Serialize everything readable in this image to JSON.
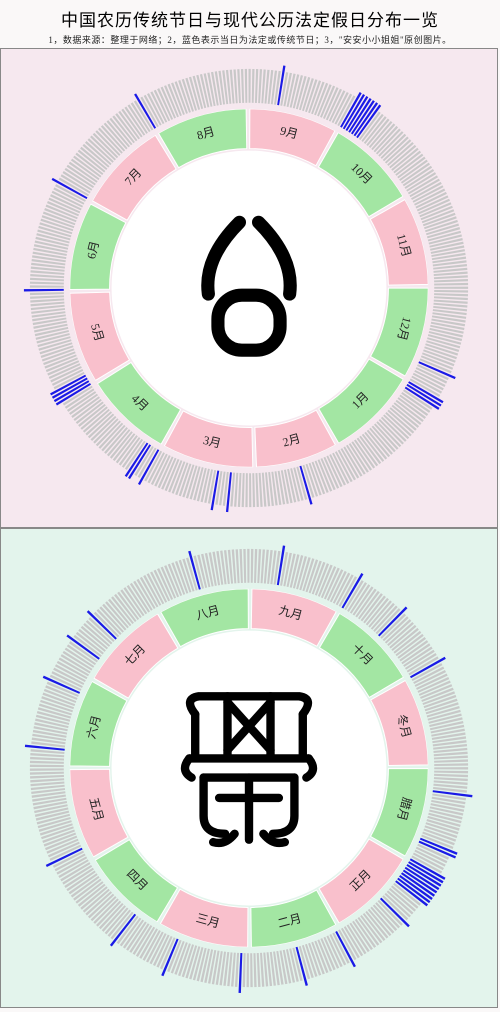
{
  "header": {
    "title": "中国农历传统节日与现代公历法定假日分布一览",
    "subtitle": "1，数据来源：整理于网络；2，蓝色表示当日为法定或传统节日；3，\"安安小小姐姐\"原创图片。"
  },
  "panels": [
    {
      "id": "gregorian",
      "background": "#f6e8ef",
      "months": [
        {
          "label": "1月",
          "days": 31,
          "color": "#a3e6a3"
        },
        {
          "label": "2月",
          "days": 28,
          "color": "#f9c0cc"
        },
        {
          "label": "3月",
          "days": 31,
          "color": "#f9c0cc"
        },
        {
          "label": "4月",
          "days": 30,
          "color": "#a3e6a3"
        },
        {
          "label": "5月",
          "days": 31,
          "color": "#f9c0cc"
        },
        {
          "label": "6月",
          "days": 30,
          "color": "#a3e6a3"
        },
        {
          "label": "7月",
          "days": 31,
          "color": "#f9c0cc"
        },
        {
          "label": "8月",
          "days": 31,
          "color": "#a3e6a3"
        },
        {
          "label": "9月",
          "days": 30,
          "color": "#f9c0cc"
        },
        {
          "label": "10月",
          "days": 31,
          "color": "#a3e6a3"
        },
        {
          "label": "11月",
          "days": 30,
          "color": "#f9c0cc"
        },
        {
          "label": "12月",
          "days": 31,
          "color": "#a3e6a3"
        }
      ],
      "holidays": [
        [
          1,
          1
        ],
        [
          1,
          2
        ],
        [
          1,
          3
        ],
        [
          2,
          14
        ],
        [
          3,
          8
        ],
        [
          3,
          12
        ],
        [
          4,
          1
        ],
        [
          4,
          4
        ],
        [
          4,
          5
        ],
        [
          5,
          1
        ],
        [
          5,
          2
        ],
        [
          5,
          3
        ],
        [
          5,
          4
        ],
        [
          6,
          1
        ],
        [
          7,
          1
        ],
        [
          8,
          1
        ],
        [
          9,
          10
        ],
        [
          10,
          1
        ],
        [
          10,
          2
        ],
        [
          10,
          3
        ],
        [
          10,
          4
        ],
        [
          10,
          5
        ],
        [
          10,
          6
        ],
        [
          10,
          7
        ],
        [
          12,
          25
        ]
      ],
      "glyph": "gong",
      "start_angle_deg": 120
    },
    {
      "id": "lunar",
      "background": "#e3f4ec",
      "months": [
        {
          "label": "正月",
          "days": 30,
          "color": "#f9c0cc"
        },
        {
          "label": "二月",
          "days": 29,
          "color": "#a3e6a3"
        },
        {
          "label": "三月",
          "days": 30,
          "color": "#f9c0cc"
        },
        {
          "label": "四月",
          "days": 29,
          "color": "#a3e6a3"
        },
        {
          "label": "五月",
          "days": 30,
          "color": "#f9c0cc"
        },
        {
          "label": "六月",
          "days": 29,
          "color": "#a3e6a3"
        },
        {
          "label": "七月",
          "days": 30,
          "color": "#f9c0cc"
        },
        {
          "label": "八月",
          "days": 30,
          "color": "#a3e6a3"
        },
        {
          "label": "九月",
          "days": 29,
          "color": "#f9c0cc"
        },
        {
          "label": "十月",
          "days": 30,
          "color": "#a3e6a3"
        },
        {
          "label": "冬月",
          "days": 29,
          "color": "#f9c0cc"
        },
        {
          "label": "腊月",
          "days": 30,
          "color": "#a3e6a3"
        }
      ],
      "holidays": [
        [
          1,
          1
        ],
        [
          1,
          2
        ],
        [
          1,
          3
        ],
        [
          1,
          4
        ],
        [
          1,
          5
        ],
        [
          1,
          6
        ],
        [
          1,
          7
        ],
        [
          1,
          8
        ],
        [
          1,
          15
        ],
        [
          2,
          2
        ],
        [
          2,
          15
        ],
        [
          3,
          3
        ],
        [
          3,
          23
        ],
        [
          4,
          8
        ],
        [
          5,
          5
        ],
        [
          6,
          6
        ],
        [
          6,
          24
        ],
        [
          7,
          7
        ],
        [
          7,
          15
        ],
        [
          8,
          15
        ],
        [
          9,
          9
        ],
        [
          10,
          1
        ],
        [
          10,
          15
        ],
        [
          11,
          1
        ],
        [
          12,
          8
        ],
        [
          12,
          23
        ],
        [
          12,
          24
        ],
        [
          12,
          30
        ]
      ],
      "glyph": "nong",
      "start_angle_deg": 120
    }
  ],
  "style": {
    "outer_r": 220,
    "tick_r0": 184,
    "tick_r1": 220,
    "month_r0": 140,
    "month_r1": 180,
    "gap_deg": 0.4,
    "day_tick_color": "#c8c8c8",
    "holiday_color": "#1a1ae6",
    "ring_gap_color": "#ffffff",
    "panel_border": "#888888",
    "glyph_color": "#000000",
    "label_font_size": 12
  }
}
